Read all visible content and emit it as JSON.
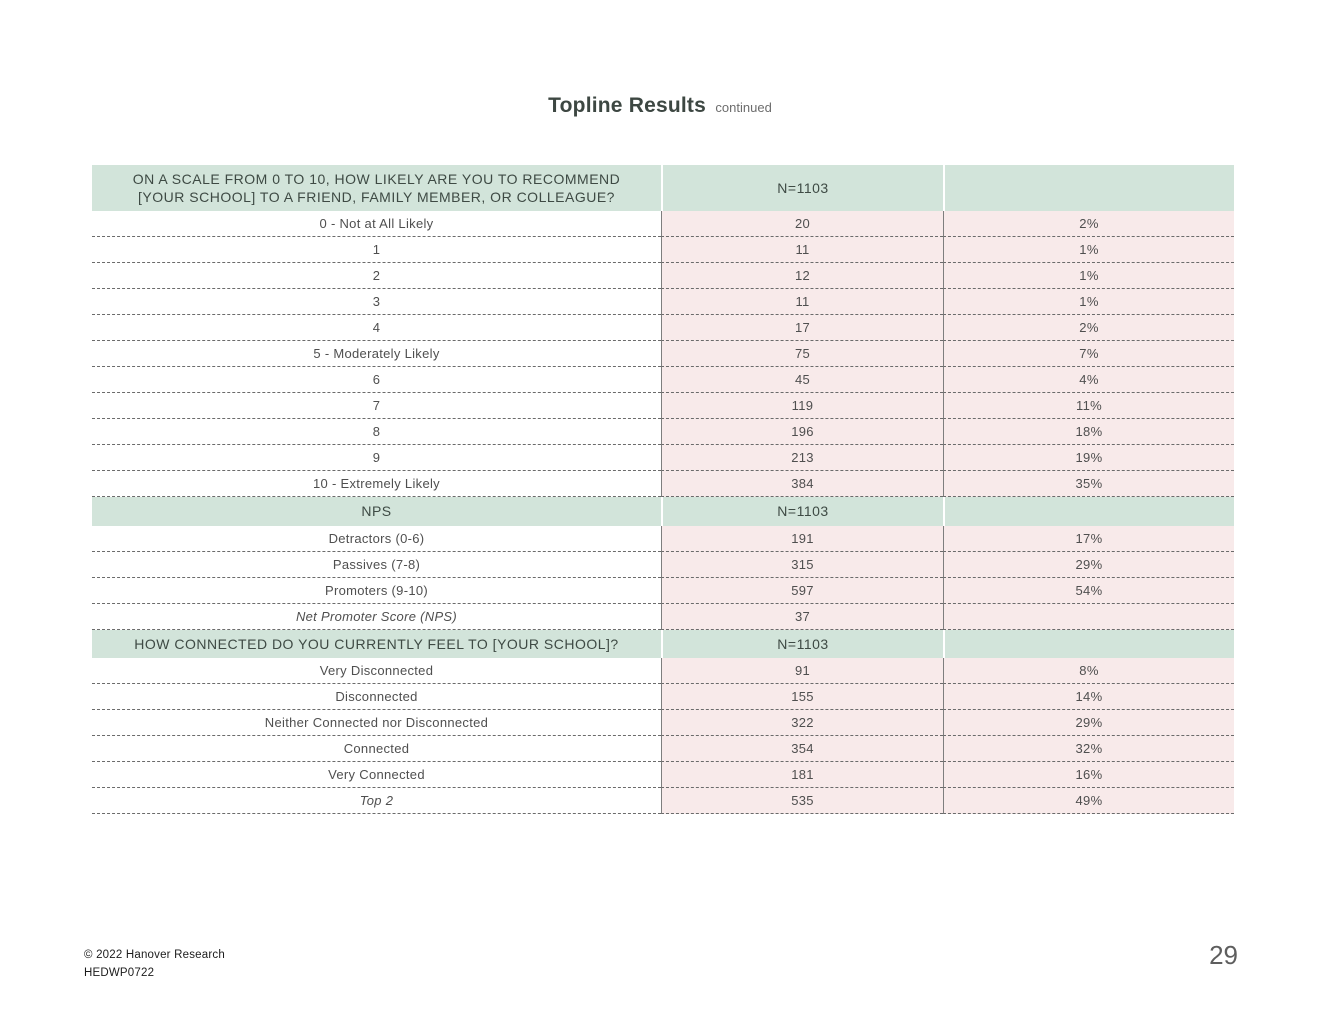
{
  "page": {
    "title": "Topline Results",
    "subtitle": "continued",
    "footer": {
      "copyright": "© 2022 Hanover Research",
      "code": "HEDWP0722",
      "page_number": "29"
    }
  },
  "colors": {
    "section_header_bg": "#d2e4da",
    "value_cell_bg": "#f8eaea",
    "dashed_line": "#6b6b6b",
    "body_text": "#4f4f4f",
    "header_text": "#3e4a44"
  },
  "table": {
    "sections": [
      {
        "header_lines": [
          "ON A SCALE FROM 0 TO 10, HOW LIKELY ARE YOU TO RECOMMEND",
          "[YOUR SCHOOL] TO A FRIEND, FAMILY MEMBER, OR COLLEAGUE?"
        ],
        "n": "N=1103",
        "rows": [
          {
            "label": "0 - Not at All Likely",
            "count": "20",
            "pct": "2%"
          },
          {
            "label": "1",
            "count": "11",
            "pct": "1%"
          },
          {
            "label": "2",
            "count": "12",
            "pct": "1%"
          },
          {
            "label": "3",
            "count": "11",
            "pct": "1%"
          },
          {
            "label": "4",
            "count": "17",
            "pct": "2%"
          },
          {
            "label": "5 - Moderately Likely",
            "count": "75",
            "pct": "7%"
          },
          {
            "label": "6",
            "count": "45",
            "pct": "4%"
          },
          {
            "label": "7",
            "count": "119",
            "pct": "11%"
          },
          {
            "label": "8",
            "count": "196",
            "pct": "18%"
          },
          {
            "label": "9",
            "count": "213",
            "pct": "19%"
          },
          {
            "label": "10 - Extremely Likely",
            "count": "384",
            "pct": "35%"
          }
        ]
      },
      {
        "header_lines": [
          "NPS"
        ],
        "n": "N=1103",
        "rows": [
          {
            "label": "Detractors (0-6)",
            "count": "191",
            "pct": "17%"
          },
          {
            "label": "Passives (7-8)",
            "count": "315",
            "pct": "29%"
          },
          {
            "label": "Promoters (9-10)",
            "count": "597",
            "pct": "54%"
          },
          {
            "label": "Net Promoter Score (NPS)",
            "count": "37",
            "pct": "",
            "italic": true
          }
        ]
      },
      {
        "header_lines": [
          "HOW CONNECTED DO YOU CURRENTLY FEEL TO [YOUR SCHOOL]?"
        ],
        "n": "N=1103",
        "rows": [
          {
            "label": "Very Disconnected",
            "count": "91",
            "pct": "8%"
          },
          {
            "label": "Disconnected",
            "count": "155",
            "pct": "14%"
          },
          {
            "label": "Neither Connected nor Disconnected",
            "count": "322",
            "pct": "29%"
          },
          {
            "label": "Connected",
            "count": "354",
            "pct": "32%"
          },
          {
            "label": "Very Connected",
            "count": "181",
            "pct": "16%"
          },
          {
            "label": "Top 2",
            "count": "535",
            "pct": "49%",
            "italic": true
          }
        ]
      }
    ]
  }
}
